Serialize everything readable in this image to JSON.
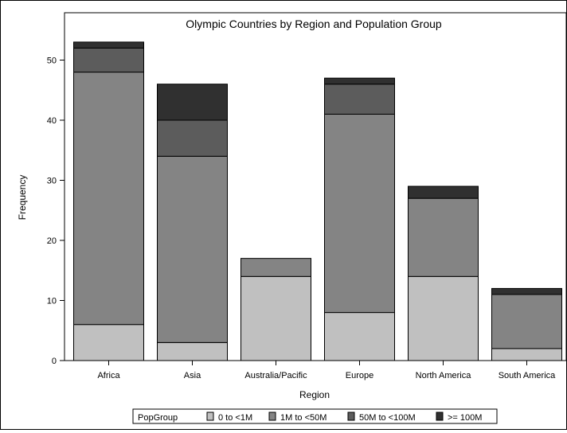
{
  "chart_data": {
    "type": "bar",
    "stacked": true,
    "title": "Olympic Countries by Region and Population Group",
    "xlabel": "Region",
    "ylabel": "Frequency",
    "ylim": [
      0,
      55
    ],
    "yticks": [
      0,
      10,
      20,
      30,
      40,
      50
    ],
    "categories": [
      "Africa",
      "Asia",
      "Australia/Pacific",
      "Europe",
      "North America",
      "South America"
    ],
    "series": [
      {
        "name": "0 to <1M",
        "color": "#c0c0c0",
        "values": [
          6,
          3,
          14,
          8,
          14,
          2
        ]
      },
      {
        "name": "1M to <50M",
        "color": "#848484",
        "values": [
          42,
          31,
          3,
          33,
          13,
          9
        ]
      },
      {
        "name": "50M to <100M",
        "color": "#5c5c5c",
        "values": [
          4,
          6,
          0,
          5,
          0,
          0
        ]
      },
      {
        "name": ">= 100M",
        "color": "#303030",
        "values": [
          1,
          6,
          0,
          1,
          2,
          1
        ]
      }
    ],
    "legend": {
      "title": "PopGroup",
      "position": "bottom"
    },
    "grid": false
  }
}
